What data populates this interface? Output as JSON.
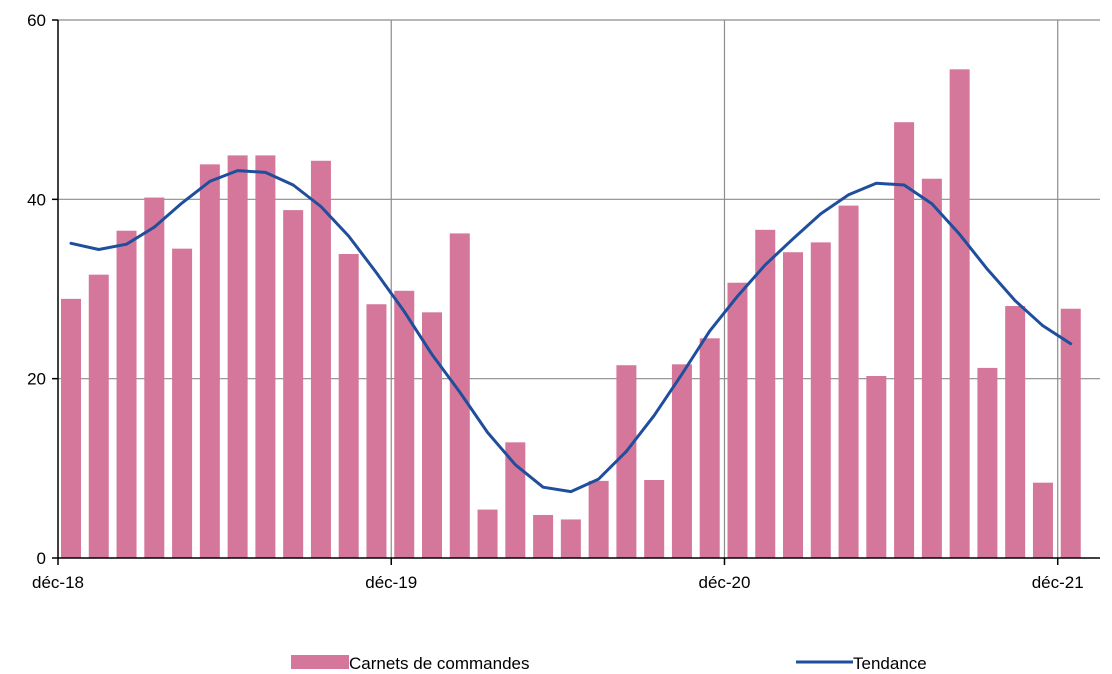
{
  "chart_data": {
    "type": "bar",
    "title": "",
    "xlabel": "",
    "ylabel": "",
    "ylim": [
      0,
      60
    ],
    "yticks": [
      0,
      20,
      40,
      60
    ],
    "x_tick_labels": [
      "déc-18",
      "déc-19",
      "déc-20",
      "déc-21"
    ],
    "grid": true,
    "legend_position": "bottom",
    "categories": [
      "2018-12",
      "2019-01",
      "2019-02",
      "2019-03",
      "2019-04",
      "2019-05",
      "2019-06",
      "2019-07",
      "2019-08",
      "2019-09",
      "2019-10",
      "2019-11",
      "2019-12",
      "2020-01",
      "2020-02",
      "2020-03",
      "2020-04",
      "2020-05",
      "2020-06",
      "2020-07",
      "2020-08",
      "2020-09",
      "2020-10",
      "2020-11",
      "2020-12",
      "2021-01",
      "2021-02",
      "2021-03",
      "2021-04",
      "2021-05",
      "2021-06",
      "2021-07",
      "2021-08",
      "2021-09",
      "2021-10",
      "2021-11",
      "2021-12"
    ],
    "series": [
      {
        "name": "Carnets de commandes",
        "type": "bar",
        "color": "#d4779a",
        "values": [
          28.9,
          31.6,
          36.5,
          40.2,
          34.5,
          43.9,
          44.9,
          44.9,
          38.8,
          44.3,
          33.9,
          28.3,
          29.8,
          27.4,
          36.2,
          5.4,
          12.9,
          4.8,
          4.3,
          8.6,
          21.5,
          8.7,
          21.6,
          24.5,
          30.7,
          36.6,
          34.1,
          35.2,
          39.3,
          20.3,
          48.6,
          42.3,
          54.5,
          21.2,
          28.1,
          8.4,
          27.8
        ]
      },
      {
        "name": "Tendance",
        "type": "line",
        "color": "#1f4e9c",
        "values": [
          35.1,
          34.4,
          35.0,
          36.9,
          39.6,
          42.0,
          43.2,
          43.0,
          41.6,
          39.2,
          35.9,
          31.8,
          27.5,
          22.7,
          18.5,
          14.0,
          10.4,
          7.9,
          7.4,
          8.8,
          11.9,
          15.9,
          20.5,
          25.3,
          29.2,
          32.7,
          35.6,
          38.4,
          40.5,
          41.8,
          41.6,
          39.5,
          36.1,
          32.2,
          28.7,
          25.9,
          23.9
        ]
      }
    ]
  }
}
